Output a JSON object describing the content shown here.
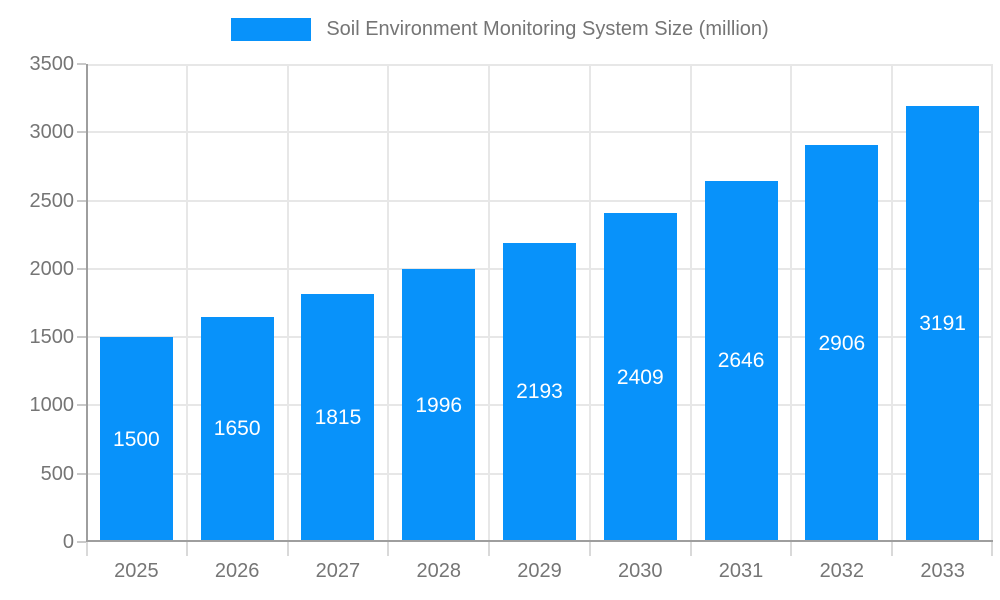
{
  "legend": {
    "label": "Soil Environment Monitoring System Size (million)"
  },
  "chart_data": {
    "type": "bar",
    "title": "Soil Environment Monitoring System Size (million)",
    "categories": [
      "2025",
      "2026",
      "2027",
      "2028",
      "2029",
      "2030",
      "2031",
      "2032",
      "2033"
    ],
    "values": [
      1500,
      1650,
      1815,
      1996,
      2193,
      2409,
      2646,
      2906,
      3191
    ],
    "xlabel": "",
    "ylabel": "",
    "ylim": [
      0,
      3500
    ],
    "yticks": [
      0,
      500,
      1000,
      1500,
      2000,
      2500,
      3000,
      3500
    ],
    "grid": true,
    "legend_position": "top",
    "value_labels": "inside-center",
    "colors": {
      "bar": "#0892fa",
      "bar_value_text": "#ffffff",
      "axis_text": "#757575",
      "axis_line": "#9e9e9e",
      "gridline": "#e7e7e7",
      "tick": "#c9c9c9",
      "background": "#ffffff"
    }
  }
}
